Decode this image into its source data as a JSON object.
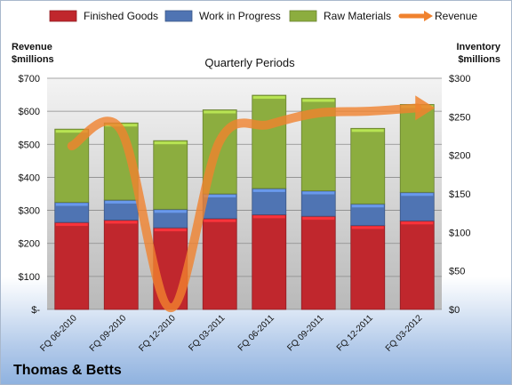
{
  "chart_data": {
    "type": "bar",
    "stacked": true,
    "title": "Quarterly Periods",
    "company": "Thomas & Betts",
    "ylabel_left": [
      "Revenue",
      "$millions"
    ],
    "ylabel_right": [
      "Inventory",
      "$millions"
    ],
    "left_ticks": [
      "$-",
      "$100",
      "$200",
      "$300",
      "$400",
      "$500",
      "$600",
      "$700"
    ],
    "right_ticks": [
      "$0",
      "$50",
      "$100",
      "$150",
      "$200",
      "$250",
      "$300"
    ],
    "ylim_left": [
      0,
      700
    ],
    "ylim_right": [
      0,
      300
    ],
    "grid": true,
    "legend_position": "top",
    "categories": [
      "FQ 06-2010",
      "FQ 09-2010",
      "FQ 12-2010",
      "FQ 03-2011",
      "FQ 06-2011",
      "FQ 09-2011",
      "FQ 12-2011",
      "FQ 03-2012"
    ],
    "series": [
      {
        "name": "Finished Goods",
        "axis": "right",
        "color": "#c0272d",
        "values": [
          113,
          116,
          106,
          118,
          123,
          121,
          109,
          115
        ]
      },
      {
        "name": "Work in Progress",
        "axis": "right",
        "color": "#4f74b3",
        "values": [
          26,
          26,
          24,
          32,
          34,
          33,
          28,
          37
        ]
      },
      {
        "name": "Raw Materials",
        "axis": "right",
        "color": "#8cad3f",
        "values": [
          95,
          100,
          89,
          109,
          121,
          120,
          98,
          114
        ]
      },
      {
        "name": "Revenue",
        "axis": "left",
        "type": "line",
        "color": "#f0822e",
        "values": [
          495,
          542,
          5,
          510,
          560,
          595,
          600,
          610
        ]
      }
    ]
  }
}
